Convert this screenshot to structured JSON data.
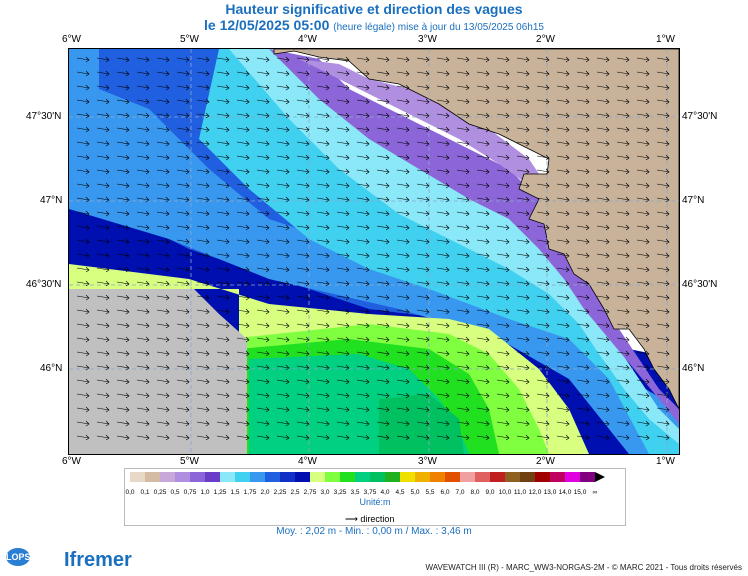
{
  "title": {
    "line1": "Hauteur significative et direction des vagues",
    "date_label": "le 12/05/2025 05:00",
    "update_note": "(heure légale) mise à jour du 13/05/2025 06h15"
  },
  "map": {
    "lon_labels_top": [
      "6°W",
      "5°W",
      "4°W",
      "3°W",
      "2°W",
      "1°W"
    ],
    "lon_labels_bottom": [
      "6°W",
      "5°W",
      "4°W",
      "3°W",
      "2°W",
      "1°W"
    ],
    "lat_labels_left": [
      "47°30'N",
      "47°N",
      "46°30'N",
      "46°N"
    ],
    "lat_labels_right": [
      "47°30'N",
      "47°N",
      "46°30'N",
      "46°N"
    ],
    "colors": {
      "land": "#c8b39a",
      "nodata": "#c0c0c0",
      "grid": "#8aa6cc"
    }
  },
  "legend": {
    "values": [
      "0,0",
      "0,1",
      "0,25",
      "0,5",
      "0,75",
      "1,0",
      "1,25",
      "1,5",
      "1,75",
      "2,0",
      "2,25",
      "2,5",
      "2,75",
      "3,0",
      "3,25",
      "3,5",
      "3,75",
      "4,0",
      "4,5",
      "5,0",
      "5,5",
      "6,0",
      "7,0",
      "8,0",
      "9,0",
      "10,0",
      "11,0",
      "12,0",
      "13,0",
      "14,0",
      "15,0",
      "∞"
    ],
    "colors": [
      "#e8d8c8",
      "#d4bca4",
      "#c8a8d8",
      "#b08ee0",
      "#8c66d8",
      "#6a3cc8",
      "#8ae8f8",
      "#40d0f0",
      "#3898f0",
      "#2060e0",
      "#1030c8",
      "#0010b0",
      "#d8ff80",
      "#80ff40",
      "#20e020",
      "#00d080",
      "#00c060",
      "#20b020",
      "#f0e000",
      "#f0b000",
      "#f08000",
      "#e05000",
      "#f0a0a0",
      "#e06060",
      "#c02020",
      "#906020",
      "#704010",
      "#a00000",
      "#c00060",
      "#e000e0",
      "#800080"
    ],
    "unit_label": "Unité:m",
    "direction_label": "direction"
  },
  "stats": "Moy. : 2,02 m   -   Min. : 0,00 m / Max. : 3,46 m",
  "credits": "WAVEWATCH III (R) - MARC_WW3-NORGAS-2M - © MARC 2021 - Tous droits réservés",
  "logos": {
    "lops": "LOPS",
    "ifremer": "Ifremer"
  }
}
